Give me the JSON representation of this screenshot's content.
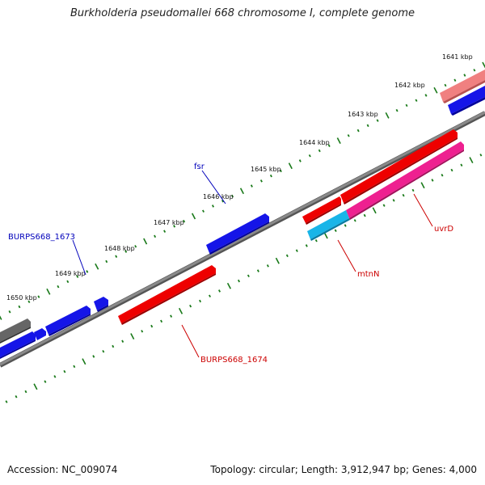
{
  "title": "Burkholderia pseudomallei 668 chromosome I, complete genome",
  "footer": {
    "accession": "Accession: NC_009074",
    "stats": "Topology: circular; Length: 3,912,947 bp; Genes: 4,000"
  },
  "colors": {
    "backbone": "#7a7a7a",
    "tick": "#1a7a1a",
    "gene_blue": "#0b10e0",
    "gene_red": "#ee0000",
    "gene_pink": "#ee1f8f",
    "gene_salmon": "#ee7070",
    "gene_cyan": "#19b5e8",
    "gene_gray": "#666666",
    "label_blue": "#0000bb",
    "label_red": "#cc0000"
  },
  "scale_labels": [
    {
      "text": "1641 kbp"
    },
    {
      "text": "1642 kbp"
    },
    {
      "text": "1643 kbp"
    },
    {
      "text": "1644 kbp"
    },
    {
      "text": "1645 kbp"
    },
    {
      "text": "1646 kbp"
    },
    {
      "text": "1647 kbp"
    },
    {
      "text": "1648 kbp"
    },
    {
      "text": "1649 kbp"
    },
    {
      "text": "1650 kbp"
    }
  ],
  "gene_labels": [
    {
      "name": "fsr",
      "color": "label_blue"
    },
    {
      "name": "BURPS668_1673",
      "color": "label_blue"
    },
    {
      "name": "uvrD",
      "color": "label_red"
    },
    {
      "name": "mtnN",
      "color": "label_red"
    },
    {
      "name": "BURPS668_1674",
      "color": "label_red"
    }
  ]
}
